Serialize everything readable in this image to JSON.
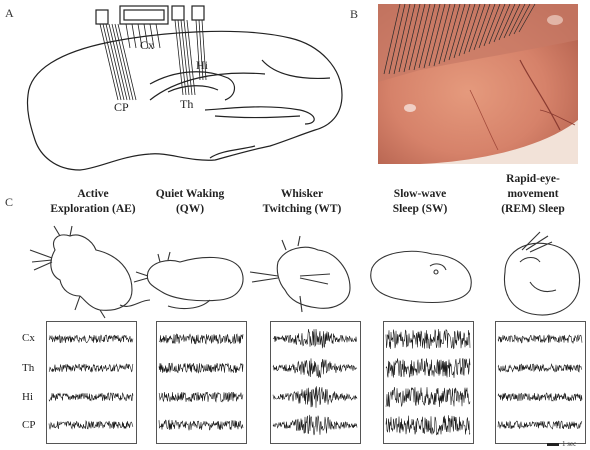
{
  "panels": {
    "a": {
      "letter": "A"
    },
    "b": {
      "letter": "B"
    },
    "c": {
      "letter": "C"
    }
  },
  "brain_labels": {
    "cortex": "Cx",
    "hippocampus": "Hi",
    "striatum": "CP",
    "thalamus": "Th"
  },
  "states": [
    {
      "line1": "Active",
      "line2": "Exploration (AE)",
      "line3": ""
    },
    {
      "line1": "Quiet Waking",
      "line2": "(QW)",
      "line3": ""
    },
    {
      "line1": "Whisker",
      "line2": "Twitching (WT)",
      "line3": ""
    },
    {
      "line1": "Slow-wave",
      "line2": "Sleep (SW)",
      "line3": ""
    },
    {
      "line1": "Rapid-eye-",
      "line2": "movement",
      "line3": "(REM) Sleep"
    }
  ],
  "trace_rows": [
    "Cx",
    "Th",
    "Hi",
    "CP"
  ],
  "scale_bar": {
    "label": "1 sec"
  },
  "colors": {
    "trace": "#1a1a1a",
    "photo_tissue": "#d9876e",
    "photo_background": "#f2e2d8"
  }
}
